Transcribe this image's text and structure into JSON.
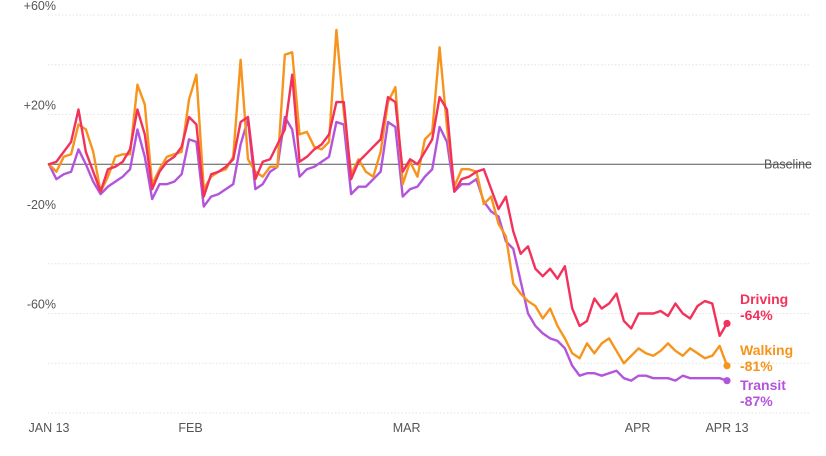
{
  "chart_data": {
    "type": "line",
    "y_axis": {
      "ticks": [
        {
          "value": 60,
          "label": "+60%"
        },
        {
          "value": 40,
          "label": ""
        },
        {
          "value": 20,
          "label": "+20%"
        },
        {
          "value": 0,
          "label": ""
        },
        {
          "value": -20,
          "label": "-20%"
        },
        {
          "value": -40,
          "label": ""
        },
        {
          "value": -60,
          "label": "-60%"
        },
        {
          "value": -80,
          "label": ""
        },
        {
          "value": -100,
          "label": ""
        }
      ],
      "range": [
        -100,
        60
      ],
      "unit": "percent change vs baseline"
    },
    "x_axis": {
      "start_date": "2020-01-13",
      "end_date": "2020-04-13",
      "tick_labels": [
        {
          "date": "2020-01-13",
          "label": "JAN 13"
        },
        {
          "date": "2020-02-01",
          "label": "FEB"
        },
        {
          "date": "2020-03-01",
          "label": "MAR"
        },
        {
          "date": "2020-04-01",
          "label": "APR"
        },
        {
          "date": "2020-04-13",
          "label": "APR 13"
        }
      ]
    },
    "baseline": {
      "value": 0,
      "label": "Baseline"
    },
    "grid": true,
    "series": [
      {
        "name": "Driving",
        "end_value_label": "-64%",
        "color": "#f2325a",
        "values": [
          0,
          1,
          5,
          9,
          22,
          5,
          -3,
          -11,
          -2,
          -1,
          1,
          6,
          22,
          12,
          -10,
          -3,
          1,
          3,
          7,
          19,
          16,
          -13,
          -4,
          -3,
          -1,
          2,
          17,
          19,
          -6,
          1,
          2,
          8,
          14,
          36,
          1,
          3,
          6,
          8,
          12,
          25,
          25,
          -6,
          1,
          4,
          7,
          10,
          27,
          25,
          -3,
          2,
          0,
          5,
          10,
          27,
          22,
          -11,
          -6,
          -5,
          -3,
          -2,
          -10,
          -18,
          -13,
          -27,
          -36,
          -33,
          -42,
          -45,
          -42,
          -46,
          -41,
          -58,
          -65,
          -63,
          -54,
          -58,
          -56,
          -52,
          -63,
          -66,
          -60,
          -60,
          -60,
          -59,
          -61,
          -56,
          -60,
          -62,
          -57,
          -55,
          -56,
          -69,
          -64
        ]
      },
      {
        "name": "Walking",
        "end_value_label": "-81%",
        "color": "#f7941d",
        "values": [
          0,
          -3,
          3,
          4,
          16,
          14,
          5,
          -11,
          -5,
          3,
          4,
          4,
          32,
          24,
          -8,
          -2,
          3,
          4,
          5,
          26,
          36,
          -10,
          -5,
          -3,
          -2,
          3,
          42,
          2,
          -3,
          -5,
          -1,
          -1,
          44,
          45,
          12,
          13,
          7,
          6,
          9,
          54,
          21,
          -4,
          2,
          -3,
          -5,
          5,
          25,
          31,
          -8,
          1,
          -5,
          10,
          13,
          47,
          15,
          -9,
          -2,
          -2,
          -3,
          -16,
          -13,
          -24,
          -29,
          -48,
          -52,
          -55,
          -57,
          -62,
          -58,
          -65,
          -70,
          -76,
          -78,
          -72,
          -76,
          -72,
          -70,
          -75,
          -80,
          -77,
          -74,
          -76,
          -77,
          -75,
          -72,
          -75,
          -77,
          -74,
          -76,
          -78,
          -77,
          -73,
          -81
        ]
      },
      {
        "name": "Transit",
        "end_value_label": "-87%",
        "color": "#b355db",
        "values": [
          0,
          -6,
          -4,
          -3,
          6,
          0,
          -7,
          -12,
          -9,
          -7,
          -5,
          -2,
          14,
          3,
          -14,
          -8,
          -8,
          -7,
          -4,
          10,
          9,
          -17,
          -13,
          -12,
          -10,
          -8,
          8,
          18,
          -10,
          -8,
          -3,
          -1,
          19,
          14,
          -5,
          -2,
          -1,
          1,
          3,
          17,
          16,
          -12,
          -9,
          -9,
          -6,
          -3,
          17,
          15,
          -13,
          -10,
          -9,
          -5,
          -2,
          15,
          9,
          -11,
          -8,
          -8,
          -6,
          -15,
          -19,
          -21,
          -31,
          -34,
          -47,
          -60,
          -65,
          -68,
          -70,
          -71,
          -74,
          -81,
          -85,
          -84,
          -84,
          -85,
          -84,
          -83,
          -86,
          -87,
          -85,
          -85,
          -86,
          -86,
          -86,
          -87,
          -85,
          -86,
          -86,
          -86,
          -86,
          -86,
          -87
        ]
      }
    ]
  }
}
